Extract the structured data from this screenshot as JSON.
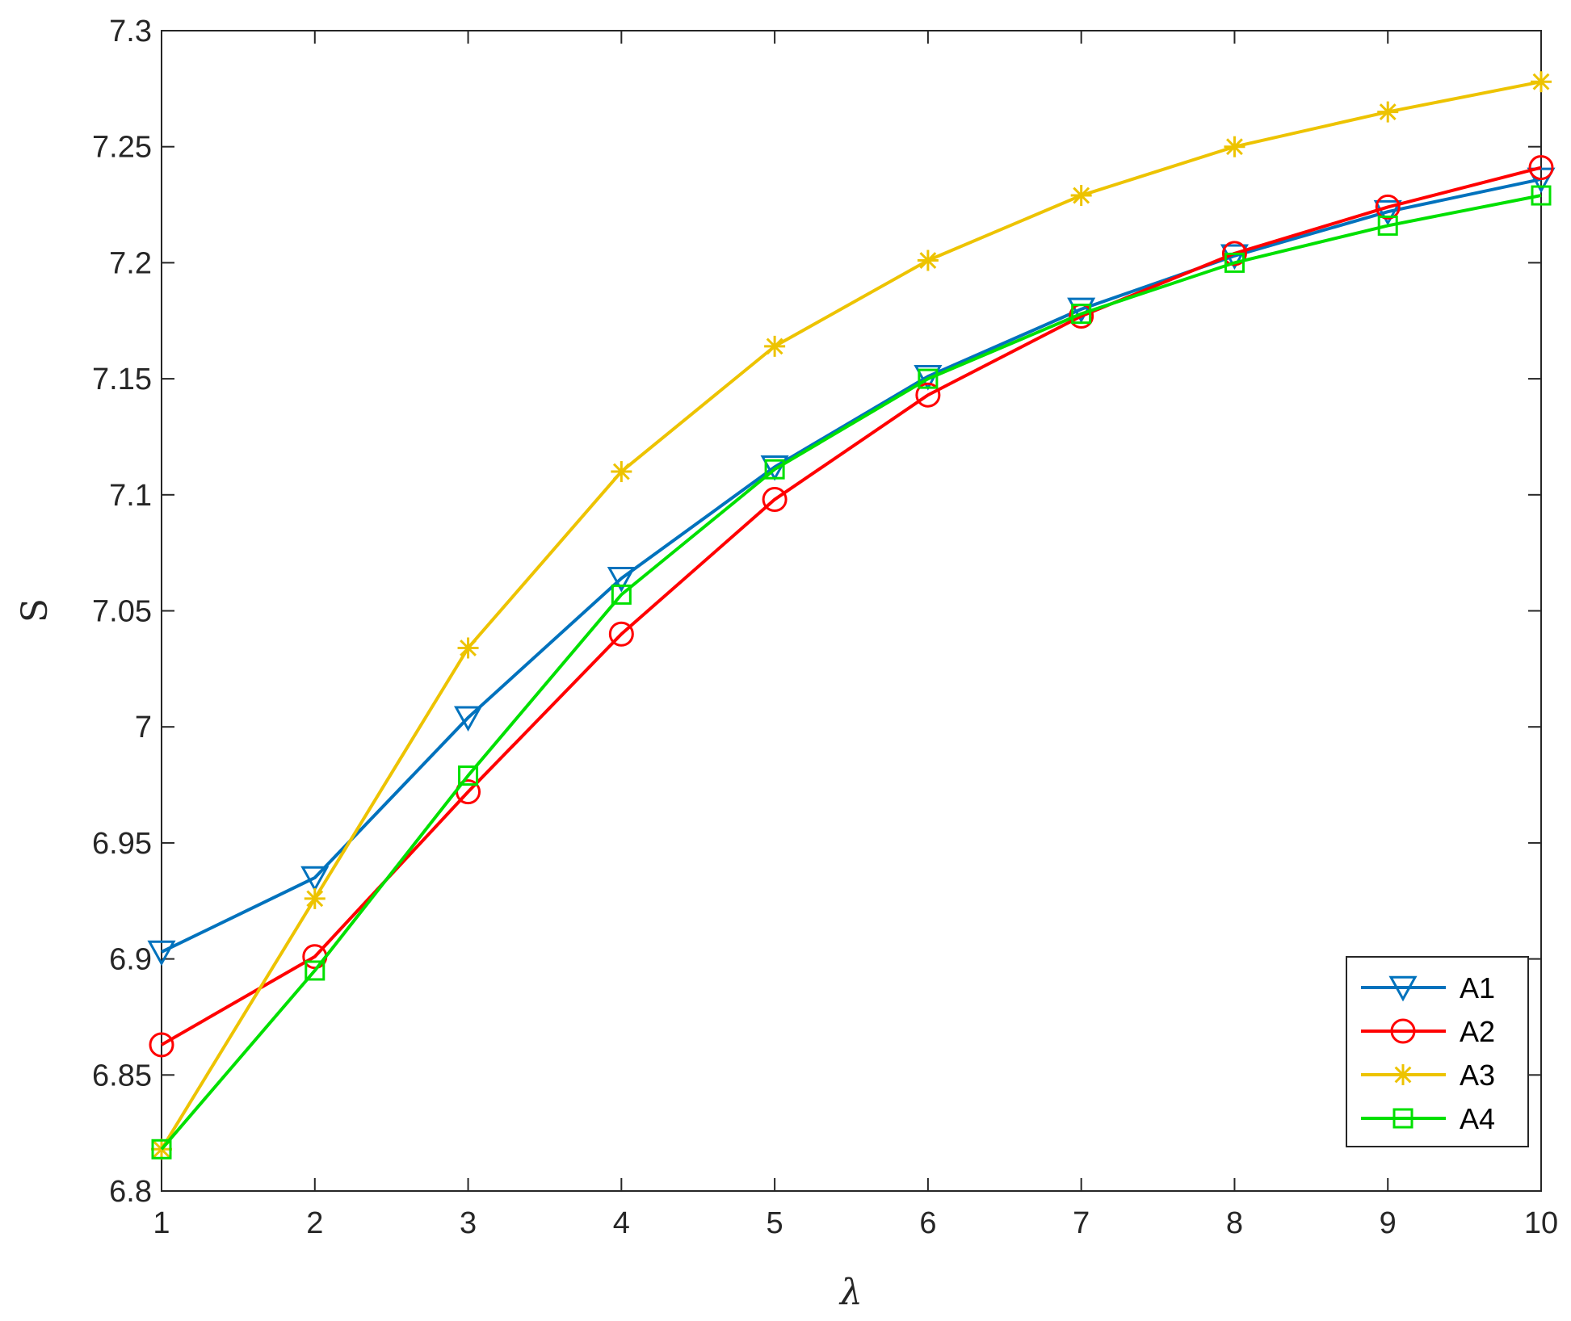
{
  "chart_data": {
    "type": "line",
    "xlabel": "λ",
    "ylabel": "S",
    "x": [
      1,
      2,
      3,
      4,
      5,
      6,
      7,
      8,
      9,
      10
    ],
    "xlim": [
      1,
      10
    ],
    "ylim": [
      6.8,
      7.3
    ],
    "x_ticks": [
      "1",
      "2",
      "3",
      "4",
      "5",
      "6",
      "7",
      "8",
      "9",
      "10"
    ],
    "y_ticks": [
      "6.8",
      "6.85",
      "6.9",
      "6.95",
      "7",
      "7.05",
      "7.1",
      "7.15",
      "7.2",
      "7.25",
      "7.3"
    ],
    "grid": false,
    "legend_position": "bottom-right",
    "series": [
      {
        "name": "A1",
        "color": "#0072BD",
        "marker": "triangle-down",
        "values": [
          6.903,
          6.935,
          7.004,
          7.064,
          7.112,
          7.151,
          7.18,
          7.203,
          7.222,
          7.236
        ]
      },
      {
        "name": "A2",
        "color": "#FF0000",
        "marker": "circle",
        "values": [
          6.863,
          6.901,
          6.972,
          7.04,
          7.098,
          7.143,
          7.177,
          7.204,
          7.224,
          7.241
        ]
      },
      {
        "name": "A3",
        "color": "#EDC300",
        "marker": "star",
        "values": [
          6.818,
          6.926,
          7.034,
          7.11,
          7.164,
          7.201,
          7.229,
          7.25,
          7.265,
          7.278
        ]
      },
      {
        "name": "A4",
        "color": "#00E000",
        "marker": "square",
        "values": [
          6.818,
          6.895,
          6.979,
          7.057,
          7.111,
          7.15,
          7.178,
          7.2,
          7.216,
          7.229
        ]
      }
    ]
  }
}
